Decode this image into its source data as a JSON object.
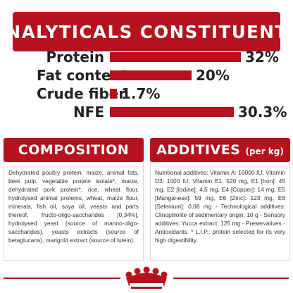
{
  "analytics": {
    "title": "ANALYTICALS CONSTITUENTS",
    "rows": [
      {
        "label": "Protein",
        "value": "32%",
        "amount": 32
      },
      {
        "label": "Fat content",
        "value": "20%",
        "amount": 20
      },
      {
        "label": "Crude fiber",
        "value": "1.7%",
        "amount": 1.7
      },
      {
        "label": "NFE",
        "value": "30.3%",
        "amount": 30.3
      }
    ]
  },
  "composition": {
    "title": "COMPOSITION",
    "text": "Dehydrated poultry protein, maize, animal fats, beet pulp, vegetable protein isolate*, maize, dehydrated pork protein*, rice, wheat flour, hydrolysed animal proteins, wheat, maize flour, minerals, fish oil, soya oil, yeasts and parts thereof, fructo-oligo-saccharides [0,34%], hydrolysed yeast (source of manno-oligo-saccharides), yeasts extracts (source of betaglucans), marigold extract (source of lutein)."
  },
  "additives": {
    "title": "ADDITIVES",
    "unit": "(per kg)",
    "text": "Nutritional additives: Vitamin A: 16000 IU, Vitamin D3: 1000 IU, Vitamin E1: 520 mg, E1 [Iron]: 45 mg, E2 [Iodine]: 4,5 mg, E4 [Copper]: 14 mg, E5 [Manganese]: 59 mg, E6 [Zinc]: 123 mg, E8 [Selenium]: 0,08 mg - Technological additives: Clinoptilolite of sedimentary origin: 10 g - Sensory additives: Yucca extract: 125 mg - Preservatives - Antioxidants. * L.I.P.: protein selected for its very high digestibility."
  },
  "brand": {
    "logo": "crown-icon"
  },
  "colors": {
    "accent": "#b6121e",
    "text": "#222222",
    "panel_border": "#d7d7d7"
  }
}
